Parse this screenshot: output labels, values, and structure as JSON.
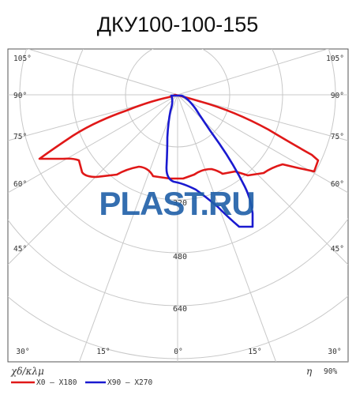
{
  "title": "ДКУ100-100-155",
  "watermark": "PLAST.RU",
  "units_label": "χδ/κλμ",
  "efficiency": {
    "symbol": "η",
    "value": "90%"
  },
  "angle_labels": {
    "left": [
      "105°",
      "90°",
      "75°",
      "60°",
      "45°"
    ],
    "right": [
      "105°",
      "90°",
      "75°",
      "60°",
      "45°"
    ],
    "bottom": [
      "30°",
      "15°",
      "0°",
      "15°",
      "30°"
    ]
  },
  "ring_labels": [
    "320",
    "480",
    "640"
  ],
  "legend": [
    {
      "label": "X0 — X180",
      "color": "#e01818"
    },
    {
      "label": "X90 — X270",
      "color": "#1a1ad0"
    }
  ],
  "colors": {
    "c0_180": "#e01818",
    "c90_270": "#1a1ad0",
    "watermark": "#1f5fa8"
  }
}
